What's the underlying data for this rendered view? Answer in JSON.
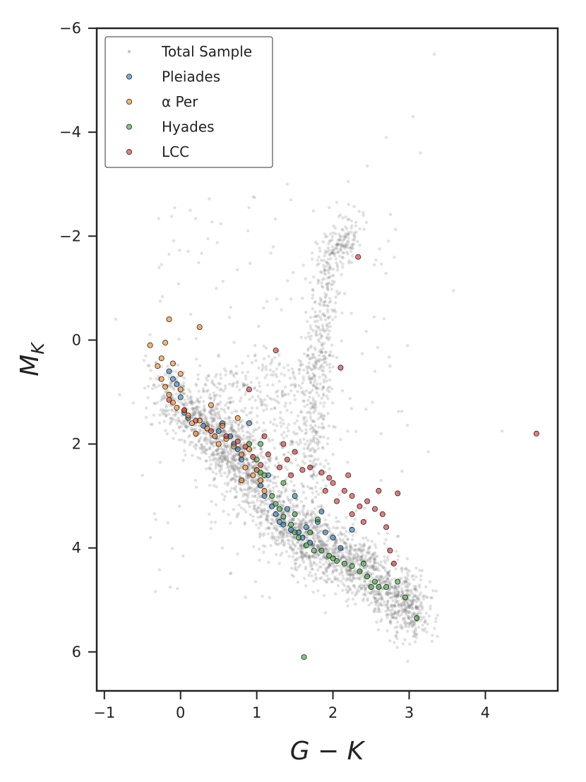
{
  "chart_data": {
    "type": "scatter",
    "xlabel": "G − K",
    "ylabel_main": "M",
    "ylabel_sub": "K",
    "xlim": [
      -1.1,
      4.95
    ],
    "ylim": [
      -6.0,
      6.75
    ],
    "y_inverted": true,
    "grid": false,
    "legend_placement": "top-left",
    "x_ticks": [
      -1,
      0,
      1,
      2,
      3,
      4
    ],
    "y_ticks": [
      -6,
      -4,
      -2,
      0,
      2,
      4,
      6
    ],
    "x_tick_labels": [
      "−1",
      "0",
      "1",
      "2",
      "3",
      "4"
    ],
    "y_tick_labels": [
      "−6",
      "−4",
      "−2",
      "0",
      "2",
      "4",
      "6"
    ],
    "series": [
      {
        "name": "Total Sample",
        "color": "#999999",
        "marker": "small-dot",
        "description_points": [
          [
            3.33,
            -5.5
          ],
          [
            3.05,
            -4.3
          ],
          [
            3.15,
            -3.6
          ],
          [
            2.7,
            -3.9
          ],
          [
            2.45,
            -3.35
          ],
          [
            2.2,
            -3.05
          ],
          [
            2.05,
            -2.65
          ],
          [
            2.3,
            -2.2
          ],
          [
            1.95,
            -2.55
          ],
          [
            1.4,
            -3.0
          ],
          [
            1.45,
            -2.7
          ],
          [
            -0.15,
            -1.65
          ],
          [
            -0.25,
            -1.45
          ],
          [
            -0.85,
            -0.4
          ],
          [
            -0.4,
            -0.1
          ],
          [
            3.58,
            -0.95
          ],
          [
            2.75,
            0.5
          ],
          [
            2.55,
            0.6
          ],
          [
            4.22,
            1.75
          ],
          [
            3.25,
            2.15
          ],
          [
            -0.5,
            2.6
          ],
          [
            -0.8,
            1.05
          ],
          [
            3.3,
            5.8
          ],
          [
            3.1,
            5.4
          ],
          [
            1.9,
            5.25
          ],
          [
            0.55,
            4.0
          ]
        ],
        "features": {
          "main_sequence": [
            [
              -0.3,
              0.8
            ],
            [
              0.2,
              1.5
            ],
            [
              0.6,
              2.0
            ],
            [
              1.0,
              2.8
            ],
            [
              1.4,
              3.6
            ],
            [
              1.8,
              4.0
            ],
            [
              2.3,
              4.3
            ],
            [
              2.8,
              4.9
            ],
            [
              3.1,
              5.3
            ]
          ],
          "red_giant_branch": [
            [
              1.7,
              3.0
            ],
            [
              1.75,
              1.8
            ],
            [
              1.8,
              0.8
            ],
            [
              1.85,
              0.0
            ],
            [
              1.9,
              -0.8
            ],
            [
              1.95,
              -1.5
            ],
            [
              2.1,
              -1.8
            ],
            [
              2.3,
              -2.2
            ]
          ]
        }
      },
      {
        "name": "Pleiades",
        "color": "#1f77b4",
        "points": [
          [
            -0.1,
            0.75
          ],
          [
            -0.15,
            0.6
          ],
          [
            -0.05,
            0.85
          ],
          [
            0.0,
            1.1
          ],
          [
            0.05,
            1.4
          ],
          [
            0.1,
            1.5
          ],
          [
            0.3,
            1.65
          ],
          [
            0.5,
            1.75
          ],
          [
            0.65,
            1.85
          ],
          [
            0.75,
            2.1
          ],
          [
            0.8,
            2.3
          ],
          [
            0.9,
            1.6
          ],
          [
            1.0,
            2.5
          ],
          [
            1.05,
            2.8
          ],
          [
            1.1,
            3.0
          ],
          [
            1.2,
            3.2
          ],
          [
            1.3,
            3.5
          ],
          [
            1.35,
            3.55
          ],
          [
            1.45,
            3.65
          ],
          [
            1.55,
            3.7
          ],
          [
            1.6,
            3.8
          ],
          [
            1.7,
            3.9
          ],
          [
            1.8,
            3.5
          ],
          [
            1.85,
            3.3
          ],
          [
            1.9,
            3.7
          ],
          [
            2.0,
            3.8
          ],
          [
            2.1,
            4.0
          ],
          [
            2.25,
            3.65
          ],
          [
            1.5,
            3.0
          ],
          [
            1.4,
            3.25
          ],
          [
            0.55,
            1.6
          ],
          [
            1.15,
            2.6
          ],
          [
            1.25,
            3.35
          ],
          [
            0.7,
            2.0
          ],
          [
            1.65,
            3.6
          ]
        ]
      },
      {
        "name": "α Per",
        "color": "#ff7f0e",
        "points": [
          [
            -0.4,
            0.1
          ],
          [
            -0.2,
            0.05
          ],
          [
            0.25,
            -0.25
          ],
          [
            -0.15,
            -0.4
          ],
          [
            -0.3,
            0.5
          ],
          [
            -0.25,
            0.75
          ],
          [
            -0.2,
            0.9
          ],
          [
            -0.15,
            1.05
          ],
          [
            -0.1,
            1.2
          ],
          [
            -0.05,
            1.3
          ],
          [
            0.0,
            0.65
          ],
          [
            0.05,
            1.35
          ],
          [
            0.1,
            1.45
          ],
          [
            0.15,
            1.6
          ],
          [
            0.25,
            1.55
          ],
          [
            0.35,
            1.7
          ],
          [
            0.4,
            1.25
          ],
          [
            0.45,
            1.85
          ],
          [
            0.55,
            1.65
          ],
          [
            0.6,
            1.9
          ],
          [
            0.7,
            2.05
          ],
          [
            0.75,
            1.5
          ],
          [
            0.8,
            2.2
          ],
          [
            0.85,
            2.45
          ],
          [
            0.9,
            2.1
          ],
          [
            0.95,
            2.6
          ],
          [
            1.0,
            2.5
          ],
          [
            1.05,
            2.7
          ],
          [
            1.1,
            2.9
          ],
          [
            0.8,
            2.7
          ],
          [
            -0.1,
            0.45
          ],
          [
            0.0,
            0.95
          ],
          [
            -0.25,
            0.35
          ],
          [
            0.2,
            1.8
          ],
          [
            0.5,
            2.0
          ]
        ]
      },
      {
        "name": "Hyades",
        "color": "#2ca02c",
        "points": [
          [
            0.9,
            2.0
          ],
          [
            1.0,
            2.3
          ],
          [
            1.05,
            2.55
          ],
          [
            1.1,
            2.6
          ],
          [
            1.2,
            3.0
          ],
          [
            1.25,
            3.15
          ],
          [
            1.35,
            3.4
          ],
          [
            1.45,
            3.55
          ],
          [
            1.5,
            3.7
          ],
          [
            1.55,
            3.8
          ],
          [
            1.65,
            3.95
          ],
          [
            1.75,
            4.05
          ],
          [
            1.85,
            4.05
          ],
          [
            1.95,
            4.15
          ],
          [
            2.05,
            4.25
          ],
          [
            2.15,
            4.3
          ],
          [
            2.25,
            4.35
          ],
          [
            2.35,
            4.45
          ],
          [
            2.45,
            4.55
          ],
          [
            2.55,
            4.65
          ],
          [
            2.6,
            4.75
          ],
          [
            2.7,
            4.75
          ],
          [
            2.85,
            4.65
          ],
          [
            2.95,
            4.95
          ],
          [
            3.1,
            5.35
          ],
          [
            1.62,
            6.1
          ],
          [
            1.35,
            2.75
          ],
          [
            1.5,
            3.35
          ],
          [
            1.8,
            3.45
          ],
          [
            1.7,
            3.7
          ],
          [
            2.5,
            4.75
          ],
          [
            1.05,
            2.0
          ],
          [
            1.3,
            3.25
          ],
          [
            2.0,
            4.2
          ],
          [
            2.4,
            4.3
          ]
        ]
      },
      {
        "name": "LCC",
        "color": "#d62728",
        "points": [
          [
            2.33,
            -1.6
          ],
          [
            1.25,
            0.2
          ],
          [
            2.1,
            0.53
          ],
          [
            0.9,
            0.95
          ],
          [
            -0.15,
            1.15
          ],
          [
            0.05,
            1.35
          ],
          [
            0.2,
            1.55
          ],
          [
            0.4,
            1.75
          ],
          [
            0.6,
            1.85
          ],
          [
            0.75,
            1.95
          ],
          [
            0.85,
            2.05
          ],
          [
            0.95,
            2.25
          ],
          [
            1.05,
            2.4
          ],
          [
            1.15,
            2.2
          ],
          [
            1.3,
            2.45
          ],
          [
            1.4,
            2.3
          ],
          [
            1.45,
            2.6
          ],
          [
            1.6,
            2.5
          ],
          [
            1.7,
            2.45
          ],
          [
            1.85,
            2.55
          ],
          [
            1.9,
            2.9
          ],
          [
            2.0,
            2.75
          ],
          [
            2.05,
            3.1
          ],
          [
            2.15,
            2.9
          ],
          [
            2.25,
            3.0
          ],
          [
            2.35,
            3.2
          ],
          [
            2.45,
            3.1
          ],
          [
            2.55,
            3.25
          ],
          [
            2.6,
            2.9
          ],
          [
            2.7,
            3.6
          ],
          [
            2.85,
            2.95
          ],
          [
            2.65,
            3.35
          ],
          [
            2.75,
            4.05
          ],
          [
            2.8,
            4.3
          ],
          [
            4.67,
            1.8
          ],
          [
            2.2,
            2.6
          ],
          [
            1.5,
            2.15
          ],
          [
            2.4,
            3.5
          ],
          [
            2.25,
            3.35
          ],
          [
            1.95,
            2.65
          ],
          [
            1.35,
            2.0
          ],
          [
            1.1,
            1.85
          ]
        ]
      }
    ]
  }
}
